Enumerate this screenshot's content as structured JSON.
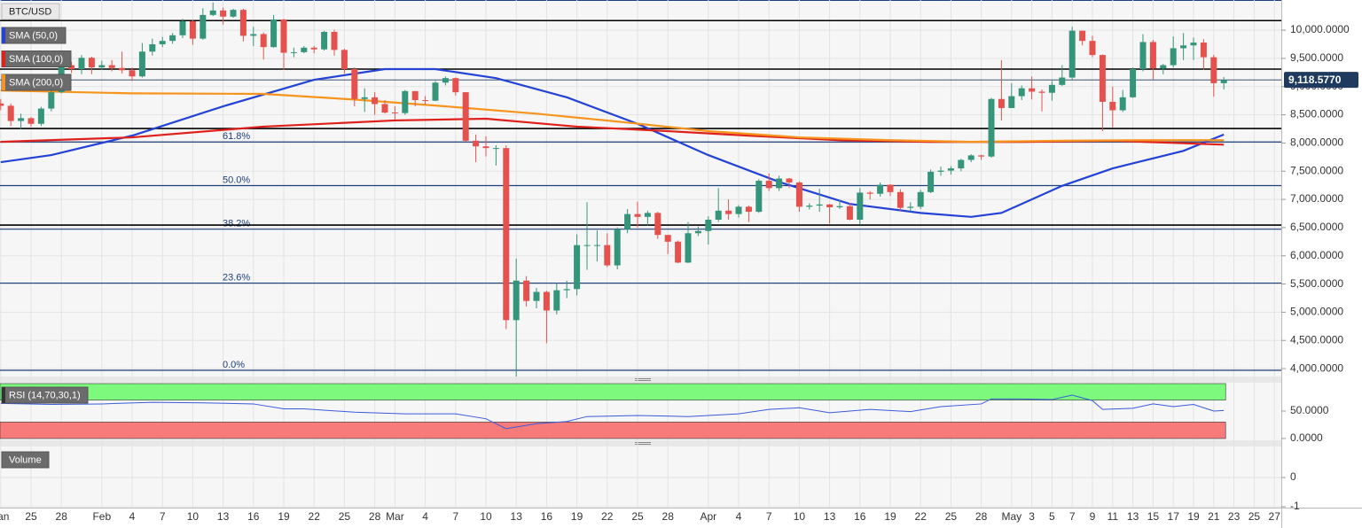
{
  "chart_data": [
    {
      "type": "candlestick",
      "symbol": "BTC/USD",
      "categories": [
        "Jan 22",
        "Jan 23",
        "Jan 24",
        "Jan 25",
        "Jan 26",
        "Jan 27",
        "Jan 28",
        "Jan 29",
        "Jan 30",
        "Jan 31",
        "Feb 1",
        "Feb 2",
        "Feb 3",
        "Feb 4",
        "Feb 5",
        "Feb 6",
        "Feb 7",
        "Feb 8",
        "Feb 9",
        "Feb 10",
        "Feb 11",
        "Feb 12",
        "Feb 13",
        "Feb 14",
        "Feb 15",
        "Feb 16",
        "Feb 17",
        "Feb 18",
        "Feb 19",
        "Feb 20",
        "Feb 21",
        "Feb 22",
        "Feb 23",
        "Feb 24",
        "Feb 25",
        "Feb 26",
        "Feb 27",
        "Feb 28",
        "Feb 29",
        "Mar 1",
        "Mar 2",
        "Mar 3",
        "Mar 4",
        "Mar 5",
        "Mar 6",
        "Mar 7",
        "Mar 8",
        "Mar 9",
        "Mar 10",
        "Mar 11",
        "Mar 12",
        "Mar 13",
        "Mar 14",
        "Mar 15",
        "Mar 16",
        "Mar 17",
        "Mar 18",
        "Mar 19",
        "Mar 20",
        "Mar 21",
        "Mar 22",
        "Mar 23",
        "Mar 24",
        "Mar 25",
        "Mar 26",
        "Mar 27",
        "Mar 28",
        "Mar 29",
        "Mar 30",
        "Mar 31",
        "Apr 1",
        "Apr 2",
        "Apr 3",
        "Apr 4",
        "Apr 5",
        "Apr 6",
        "Apr 7",
        "Apr 8",
        "Apr 9",
        "Apr 10",
        "Apr 11",
        "Apr 12",
        "Apr 13",
        "Apr 14",
        "Apr 15",
        "Apr 16",
        "Apr 17",
        "Apr 18",
        "Apr 19",
        "Apr 20",
        "Apr 21",
        "Apr 22",
        "Apr 23",
        "Apr 24",
        "Apr 25",
        "Apr 26",
        "Apr 27",
        "Apr 28",
        "Apr 29",
        "Apr 30",
        "May 1",
        "May 2",
        "May 3",
        "May 4",
        "May 5",
        "May 6",
        "May 7",
        "May 8",
        "May 9",
        "May 10",
        "May 11",
        "May 12",
        "May 13",
        "May 14",
        "May 15",
        "May 16",
        "May 17",
        "May 18",
        "May 19",
        "May 20",
        "May 21",
        "May 22",
        "May 23",
        "May 24",
        "May 25",
        "May 26",
        "May 27",
        "May 28"
      ],
      "open": [
        8700,
        8660,
        8390,
        8440,
        8340,
        8610,
        8900,
        9380,
        9310,
        9510,
        9340,
        9380,
        9330,
        9290,
        9180,
        9620,
        9750,
        9810,
        9910,
        10160,
        9850,
        10270,
        10350,
        10240,
        10360,
        9900,
        9930,
        9700,
        10190,
        9600,
        9610,
        9690,
        9660,
        9970,
        9650,
        9310,
        8780,
        8810,
        8690,
        8540,
        8530,
        8920,
        8760,
        8750,
        9070,
        9150,
        8900,
        8040,
        7940,
        7910,
        7910,
        4860,
        5560,
        5200,
        5360,
        5030,
        5390,
        5410,
        6190,
        6190,
        6190,
        5830,
        6470,
        6740,
        6690,
        6760,
        6370,
        6250,
        5880,
        6400,
        6440,
        6640,
        6800,
        6740,
        6870,
        6780,
        7330,
        7200,
        7370,
        7300,
        6870,
        6890,
        6910,
        6860,
        6880,
        6640,
        7120,
        7100,
        7260,
        7130,
        6850,
        6870,
        7130,
        7490,
        7510,
        7550,
        7700,
        7780,
        7760,
        8780,
        8620,
        8830,
        8970,
        8910,
        8890,
        9030,
        9160,
        9990,
        9810,
        9560,
        8730,
        8580,
        8810,
        9310,
        9790,
        9320,
        9380,
        9680,
        9730,
        9780,
        9520,
        9060,
        null,
        null,
        null,
        null,
        null,
        null
      ],
      "high": [
        8780,
        8700,
        8520,
        8460,
        8640,
        8960,
        9420,
        9440,
        9560,
        9530,
        9460,
        9470,
        9620,
        9340,
        9770,
        9850,
        9880,
        9950,
        10200,
        10180,
        10390,
        10490,
        10400,
        10380,
        10380,
        10060,
        9960,
        10270,
        10200,
        9690,
        9720,
        9720,
        9990,
        10010,
        9670,
        9340,
        8970,
        8900,
        8760,
        8650,
        8940,
        8920,
        8830,
        9100,
        9180,
        9160,
        8900,
        8150,
        8120,
        7960,
        7960,
        5950,
        5640,
        5430,
        5380,
        5520,
        5560,
        6380,
        6950,
        6450,
        6400,
        6500,
        6830,
        6960,
        6800,
        6780,
        6370,
        6270,
        6600,
        6520,
        6700,
        7200,
        7000,
        6900,
        6890,
        7360,
        7460,
        7420,
        7380,
        7320,
        6930,
        7190,
        6920,
        6990,
        6930,
        7200,
        7150,
        7300,
        7270,
        7180,
        6950,
        7170,
        7530,
        7580,
        7590,
        7720,
        7800,
        7790,
        8800,
        9470,
        9060,
        9020,
        9180,
        8950,
        9100,
        9380,
        10060,
        9990,
        9900,
        9570,
        9000,
        8940,
        9340,
        9930,
        9830,
        9400,
        9890,
        9950,
        9870,
        9840,
        9560,
        9170,
        null,
        null,
        null,
        null,
        null,
        null
      ],
      "low": [
        8580,
        8300,
        8250,
        8290,
        8300,
        8560,
        8880,
        9240,
        9220,
        9220,
        9300,
        9270,
        9230,
        9100,
        9160,
        9550,
        9700,
        9760,
        9860,
        9740,
        9830,
        10250,
        10100,
        10220,
        9800,
        9720,
        9480,
        9690,
        9300,
        9520,
        9590,
        9590,
        9640,
        9550,
        9230,
        8650,
        8550,
        8500,
        8520,
        8420,
        8500,
        8650,
        8680,
        8740,
        9020,
        8840,
        8020,
        7660,
        7760,
        7600,
        4700,
        3860,
        5100,
        5070,
        4450,
        4960,
        5250,
        5300,
        5750,
        5900,
        5800,
        5760,
        6400,
        6500,
        6540,
        6300,
        6030,
        5870,
        5870,
        6350,
        6200,
        6600,
        6640,
        6680,
        6600,
        6760,
        7150,
        7150,
        7200,
        6780,
        6820,
        6780,
        6570,
        6830,
        6630,
        6550,
        7000,
        7050,
        7060,
        6800,
        6780,
        6830,
        7110,
        7420,
        7440,
        7500,
        7660,
        7700,
        7740,
        8400,
        8620,
        8760,
        8770,
        8560,
        8750,
        9010,
        9130,
        9730,
        9520,
        8210,
        8280,
        8550,
        8800,
        9270,
        9130,
        9220,
        9340,
        9470,
        9470,
        9300,
        8820,
        8950,
        null,
        null,
        null,
        null,
        null,
        null
      ],
      "close": [
        8660,
        8390,
        8440,
        8340,
        8610,
        8900,
        9380,
        9310,
        9510,
        9340,
        9380,
        9330,
        9290,
        9180,
        9620,
        9750,
        9810,
        9910,
        10160,
        9850,
        10270,
        10350,
        10240,
        10360,
        9900,
        9930,
        9700,
        10190,
        9600,
        9610,
        9690,
        9660,
        9970,
        9650,
        9310,
        8780,
        8810,
        8690,
        8540,
        8530,
        8920,
        8760,
        8750,
        9070,
        9150,
        8900,
        8040,
        7940,
        7910,
        7910,
        4860,
        5560,
        5200,
        5360,
        5030,
        5390,
        5410,
        6190,
        6190,
        6190,
        5830,
        6470,
        6740,
        6690,
        6760,
        6370,
        6250,
        5880,
        6400,
        6440,
        6640,
        6800,
        6740,
        6870,
        6780,
        7330,
        7200,
        7370,
        7300,
        6870,
        6890,
        6910,
        6860,
        6880,
        6640,
        7120,
        7100,
        7260,
        7130,
        6850,
        6870,
        7130,
        7490,
        7510,
        7550,
        7700,
        7780,
        7760,
        8780,
        8620,
        8830,
        8970,
        8910,
        8890,
        9030,
        9160,
        9990,
        9810,
        9560,
        8730,
        8580,
        8810,
        9310,
        9790,
        9320,
        9380,
        9680,
        9730,
        9780,
        9520,
        9060,
        9118.577,
        null,
        null,
        null,
        null,
        null,
        null
      ],
      "up_color": "#35957a",
      "down_color": "#e5524d",
      "series": [
        {
          "name": "SMA (50,0)",
          "color": "#2443d6",
          "x": [
            "Jan 22",
            "Jan 27",
            "Feb 4",
            "Feb 13",
            "Feb 22",
            "Feb 29",
            "Mar 5",
            "Mar 11",
            "Mar 18",
            "Mar 25",
            "Apr 1",
            "Apr 8",
            "Apr 15",
            "Apr 22",
            "Apr 27",
            "Apr 30",
            "May 6",
            "May 11",
            "May 18",
            "May 22"
          ],
          "values": [
            7660,
            7785,
            8130,
            8650,
            9120,
            9310,
            9310,
            9150,
            8810,
            8340,
            7785,
            7310,
            6920,
            6760,
            6690,
            6760,
            7240,
            7550,
            7860,
            8150
          ]
        },
        {
          "name": "SMA (100,0)",
          "color": "#e0201b",
          "x": [
            "Jan 22",
            "Feb 4",
            "Feb 17",
            "Mar 1",
            "Mar 10",
            "Mar 19",
            "Mar 28",
            "Apr 5",
            "Apr 14",
            "Apr 23",
            "May 2",
            "May 11",
            "May 22"
          ],
          "values": [
            8020,
            8100,
            8290,
            8400,
            8430,
            8290,
            8210,
            8130,
            8050,
            8020,
            8020,
            8040,
            7970
          ]
        },
        {
          "name": "SMA (200,0)",
          "color": "#f7941d",
          "x": [
            "Jan 22",
            "Feb 4",
            "Feb 17",
            "Feb 26",
            "Mar 6",
            "Mar 15",
            "Mar 23",
            "Apr 1",
            "Apr 10",
            "Apr 19",
            "Apr 27",
            "May 6",
            "May 15",
            "May 22"
          ],
          "values": [
            8930,
            8880,
            8870,
            8770,
            8650,
            8520,
            8380,
            8210,
            8100,
            8050,
            8020,
            8040,
            8050,
            8050
          ]
        }
      ],
      "fib_levels": [
        {
          "label": "0.0%",
          "value": 3970
        },
        {
          "label": "23.6%",
          "value": 5516
        },
        {
          "label": "38.2%",
          "value": 6472
        },
        {
          "label": "50.0%",
          "value": 7245
        },
        {
          "label": "61.8%",
          "value": 8018
        }
      ],
      "fib_color": "#1d3f7a",
      "horizontal_lines": [
        10170,
        9310,
        8257,
        6545
      ],
      "last_price": {
        "value": 9118.577,
        "label": "9,118.5770"
      },
      "ylim": [
        3860,
        10535
      ],
      "yticks": [
        {
          "value": 4000,
          "label": "4,000.0000"
        },
        {
          "value": 4500,
          "label": "4,500.0000"
        },
        {
          "value": 5000,
          "label": "5,000.0000"
        },
        {
          "value": 5500,
          "label": "5,500.0000"
        },
        {
          "value": 6000,
          "label": "6,000.0000"
        },
        {
          "value": 6500,
          "label": "6,500.0000"
        },
        {
          "value": 7000,
          "label": "7,000.0000"
        },
        {
          "value": 7500,
          "label": "7,500.0000"
        },
        {
          "value": 8000,
          "label": "8,000.0000"
        },
        {
          "value": 8500,
          "label": "8,500.0000"
        },
        {
          "value": 9000,
          "label": "9,000.0000"
        },
        {
          "value": 9500,
          "label": "9,500.0000"
        },
        {
          "value": 10000,
          "label": "10,000.0000"
        }
      ],
      "xticks": [
        {
          "value": "Jan 22",
          "label": "Jan"
        },
        {
          "value": "Jan 25",
          "label": "25"
        },
        {
          "value": "Jan 28",
          "label": "28"
        },
        {
          "value": "Feb 1",
          "label": "Feb"
        },
        {
          "value": "Feb 4",
          "label": "4"
        },
        {
          "value": "Feb 7",
          "label": "7"
        },
        {
          "value": "Feb 10",
          "label": "10"
        },
        {
          "value": "Feb 13",
          "label": "13"
        },
        {
          "value": "Feb 16",
          "label": "16"
        },
        {
          "value": "Feb 19",
          "label": "19"
        },
        {
          "value": "Feb 22",
          "label": "22"
        },
        {
          "value": "Feb 25",
          "label": "25"
        },
        {
          "value": "Feb 28",
          "label": "28"
        },
        {
          "value": "Mar 1",
          "label": "Mar"
        },
        {
          "value": "Mar 4",
          "label": "4"
        },
        {
          "value": "Mar 7",
          "label": "7"
        },
        {
          "value": "Mar 10",
          "label": "10"
        },
        {
          "value": "Mar 13",
          "label": "13"
        },
        {
          "value": "Mar 16",
          "label": "16"
        },
        {
          "value": "Mar 19",
          "label": "19"
        },
        {
          "value": "Mar 22",
          "label": "22"
        },
        {
          "value": "Mar 25",
          "label": "25"
        },
        {
          "value": "Mar 28",
          "label": "28"
        },
        {
          "value": "Apr 1",
          "label": "Apr"
        },
        {
          "value": "Apr 4",
          "label": "4"
        },
        {
          "value": "Apr 7",
          "label": "7"
        },
        {
          "value": "Apr 10",
          "label": "10"
        },
        {
          "value": "Apr 13",
          "label": "13"
        },
        {
          "value": "Apr 16",
          "label": "16"
        },
        {
          "value": "Apr 19",
          "label": "19"
        },
        {
          "value": "Apr 22",
          "label": "22"
        },
        {
          "value": "Apr 25",
          "label": "25"
        },
        {
          "value": "Apr 28",
          "label": "28"
        },
        {
          "value": "May 1",
          "label": "May"
        },
        {
          "value": "May 3",
          "label": "3"
        },
        {
          "value": "May 5",
          "label": "5"
        },
        {
          "value": "May 7",
          "label": "7"
        },
        {
          "value": "May 9",
          "label": "9"
        },
        {
          "value": "May 11",
          "label": "11"
        },
        {
          "value": "May 13",
          "label": "13"
        },
        {
          "value": "May 15",
          "label": "15"
        },
        {
          "value": "May 17",
          "label": "17"
        },
        {
          "value": "May 19",
          "label": "19"
        },
        {
          "value": "May 21",
          "label": "21"
        },
        {
          "value": "May 23",
          "label": "23"
        },
        {
          "value": "May 25",
          "label": "25"
        },
        {
          "value": "May 27",
          "label": "27"
        }
      ],
      "grid": true
    },
    {
      "type": "line",
      "title": "RSI (14,70,30,1)",
      "color": "#3b5bdb",
      "x": [
        "Jan 22",
        "Jan 27",
        "Feb 1",
        "Feb 6",
        "Feb 11",
        "Feb 16",
        "Feb 19",
        "Feb 21",
        "Feb 26",
        "Mar 2",
        "Mar 7",
        "Mar 10",
        "Mar 12",
        "Mar 15",
        "Mar 18",
        "Mar 20",
        "Mar 25",
        "Mar 30",
        "Apr 4",
        "Apr 7",
        "Apr 10",
        "Apr 13",
        "Apr 17",
        "Apr 21",
        "Apr 24",
        "Apr 28",
        "Apr 29",
        "May 2",
        "May 5",
        "May 7",
        "May 9",
        "May 10",
        "May 13",
        "May 15",
        "May 17",
        "May 19",
        "May 21",
        "May 22"
      ],
      "values": [
        64,
        62,
        63,
        66,
        65,
        63,
        54,
        54,
        48,
        45,
        45,
        36,
        18,
        27,
        31,
        40,
        42,
        40,
        45,
        53,
        56,
        47,
        53,
        49,
        58,
        63,
        72,
        72,
        71,
        79,
        69,
        53,
        55,
        63,
        58,
        62,
        50,
        51
      ],
      "overbought": 70,
      "oversold": 30,
      "overbought_color": "#7dfa7d",
      "oversold_color": "#f77b7b",
      "ylim": [
        0,
        100
      ],
      "yticks": [
        {
          "value": 0,
          "label": "0.0000"
        },
        {
          "value": 50,
          "label": "50.0000"
        }
      ]
    },
    {
      "type": "volume",
      "title": "Volume",
      "ylim": [
        -1,
        1.03
      ],
      "yticks": [
        -1,
        0
      ]
    }
  ]
}
